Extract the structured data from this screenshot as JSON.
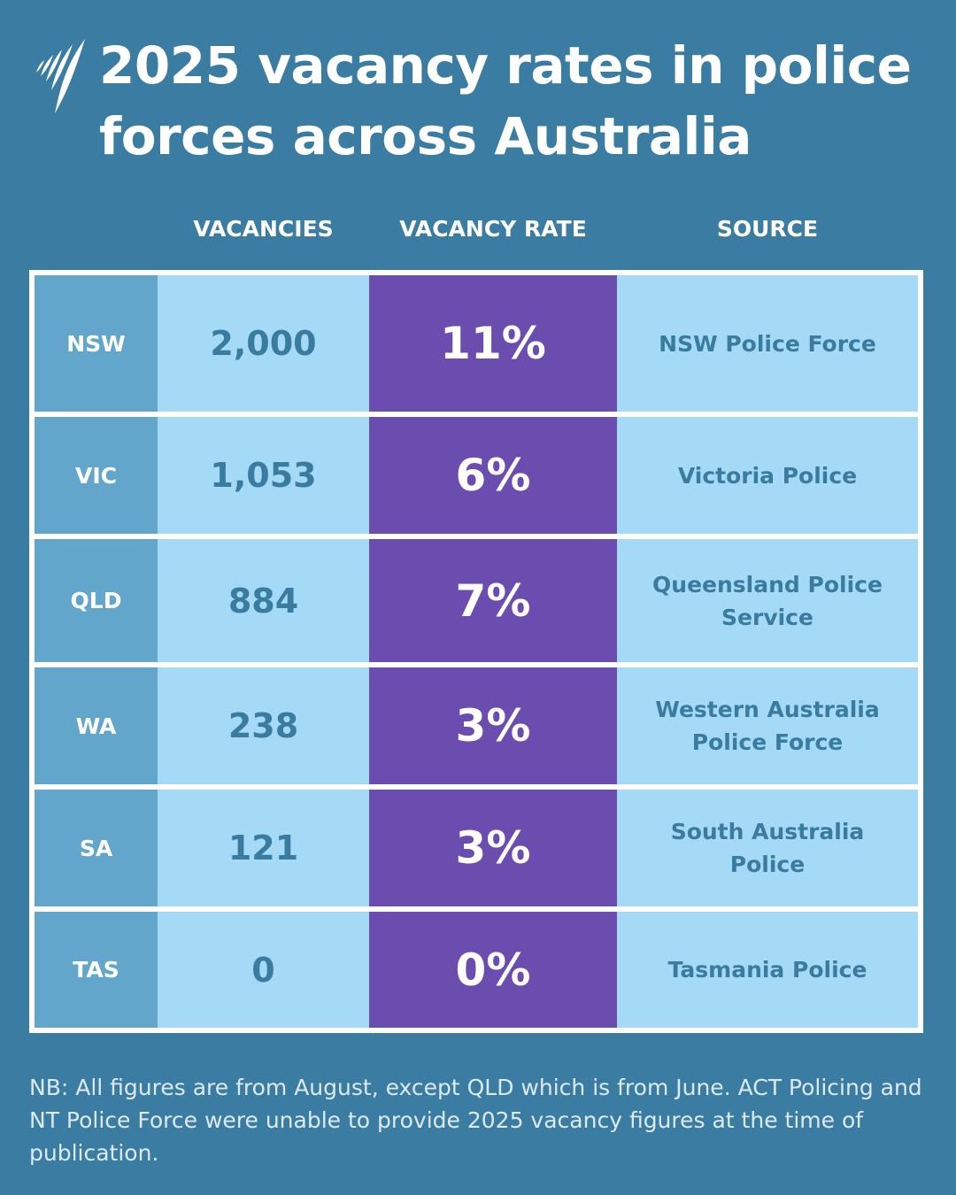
{
  "title": "2025 vacancy rates in police forces across Australia",
  "logo": {
    "name": "SBS",
    "icon": "sbs-logo-icon"
  },
  "colors": {
    "background": "#3a7ca2",
    "state_cell": "#62a6cb",
    "light_cell": "#a4daf6",
    "rate_cell": "#6b4db0",
    "cell_text": "#3a7ba0"
  },
  "headers": {
    "vacancies": "VACANCIES",
    "rate": "VACANCY RATE",
    "source": "SOURCE"
  },
  "rows": [
    {
      "state": "NSW",
      "vacancies": "2,000",
      "rate": "11%",
      "source": "NSW Police Force"
    },
    {
      "state": "VIC",
      "vacancies": "1,053",
      "rate": "6%",
      "source": "Victoria Police"
    },
    {
      "state": "QLD",
      "vacancies": "884",
      "rate": "7%",
      "source": "Queensland Police Service"
    },
    {
      "state": "WA",
      "vacancies": "238",
      "rate": "3%",
      "source": "Western Australia Police Force"
    },
    {
      "state": "SA",
      "vacancies": "121",
      "rate": "3%",
      "source": "South Australia Police"
    },
    {
      "state": "TAS",
      "vacancies": "0",
      "rate": "0%",
      "source": "Tasmania Police"
    }
  ],
  "chart_data": {
    "type": "table",
    "title": "2025 vacancy rates in police forces across Australia",
    "columns": [
      "",
      "VACANCIES",
      "VACANCY RATE",
      "SOURCE"
    ],
    "categories": [
      "NSW",
      "VIC",
      "QLD",
      "WA",
      "SA",
      "TAS"
    ],
    "series": [
      {
        "name": "VACANCIES",
        "values": [
          2000,
          1053,
          884,
          238,
          121,
          0
        ]
      },
      {
        "name": "VACANCY RATE",
        "values": [
          11,
          6,
          7,
          3,
          3,
          0
        ]
      }
    ]
  },
  "note": "NB: All figures are from August, except QLD which is from June. ACT Policing and NT Police Force were unable to provide 2025 vacancy figures at the time of publication."
}
